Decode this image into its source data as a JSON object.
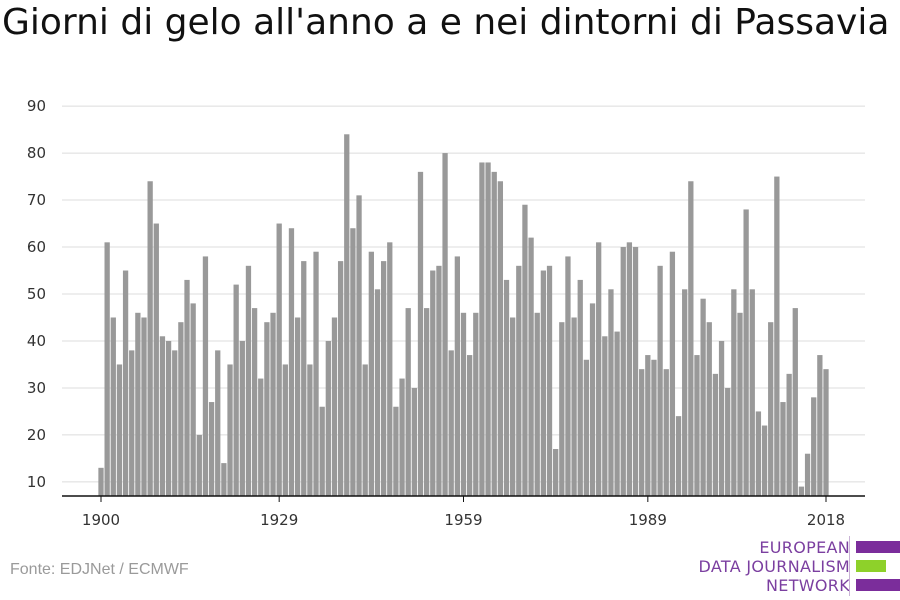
{
  "title": "Giorni di gelo all'anno a e nei dintorni di Passavia",
  "source": "Fonte: EDJNet / ECMWF",
  "logo": {
    "lines": [
      "EUROPEAN",
      "DATA JOURNALISM",
      "NETWORK"
    ],
    "colors": {
      "text": "#7b3fa0",
      "purple": "#7b2d9b",
      "green": "#8ed12a"
    }
  },
  "chart_data": {
    "type": "bar",
    "title": "Giorni di gelo all'anno a e nei dintorni di Passavia",
    "xlabel": "",
    "ylabel": "",
    "x_start": 1900,
    "x_ticks": [
      1900,
      1929,
      1959,
      1989,
      2018
    ],
    "y_ticks": [
      10,
      20,
      30,
      40,
      50,
      60,
      70,
      80,
      90
    ],
    "ylim": [
      7,
      93
    ],
    "grid": true,
    "bar_color": "#999999",
    "values": [
      13,
      61,
      45,
      35,
      55,
      38,
      46,
      45,
      74,
      65,
      41,
      40,
      38,
      44,
      53,
      48,
      20,
      58,
      27,
      38,
      14,
      35,
      52,
      40,
      56,
      47,
      32,
      44,
      46,
      65,
      35,
      64,
      45,
      57,
      35,
      59,
      26,
      40,
      45,
      57,
      84,
      64,
      71,
      35,
      59,
      51,
      57,
      61,
      26,
      32,
      47,
      30,
      76,
      47,
      55,
      56,
      80,
      38,
      58,
      46,
      37,
      46,
      78,
      78,
      76,
      74,
      53,
      45,
      56,
      69,
      62,
      46,
      55,
      56,
      17,
      44,
      58,
      45,
      53,
      36,
      48,
      61,
      41,
      51,
      42,
      60,
      61,
      60,
      34,
      37,
      36,
      56,
      34,
      59,
      24,
      51,
      74,
      37,
      49,
      44,
      33,
      40,
      30,
      51,
      46,
      68,
      51,
      25,
      22,
      44,
      75,
      27,
      33,
      47,
      9,
      16,
      28,
      37,
      34
    ]
  }
}
